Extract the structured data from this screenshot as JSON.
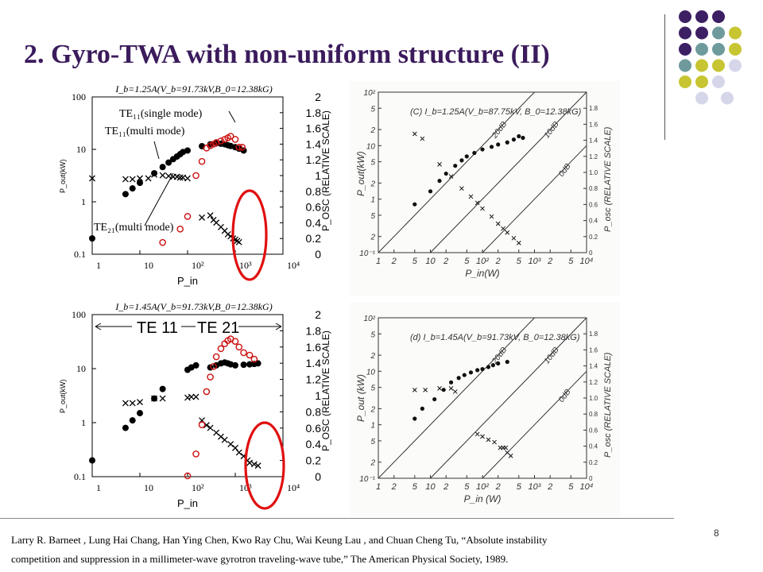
{
  "title": "2. Gyro-TWA with non-uniform structure (II)",
  "page_number": "8",
  "citation": {
    "line1": "Larry R. Barneet , Lung Hai Chang, Han Ying Chen, Kwo Ray Chu, Wai Keung Lau , and Chuan Cheng Tu, “Absolute instability",
    "line2": "competition and suppression in a millimeter-wave  gyrotron traveling-wave tube,” The American Physical Society, 1989."
  },
  "colors": {
    "title": "#3b1b5c",
    "dot_purple": "#3d1f63",
    "dot_teal": "#6e9a9c",
    "dot_yellow": "#c7c531",
    "dot_lavender": "#d6d6ea",
    "highlight": "#e01010",
    "osc_markers": "#cc1010"
  },
  "chart_data": [
    {
      "type": "scatter",
      "panel": "top-left",
      "title": "I_b=1.25A(V_b=91.73kV,B_0=12.38kG)",
      "xlabel": "P_in",
      "ylabel_left": "P_out(kW)",
      "ylabel_right": "P_OSC (RELATIVE SCALE)",
      "x_ticks": [
        "1",
        "10",
        "10²",
        "10³",
        "10⁴"
      ],
      "y_left_ticks": [
        "0.1",
        "1",
        "10",
        "100"
      ],
      "y_right_ticks": [
        "0",
        "0.2",
        "0.4",
        "0.6",
        "0.8",
        "1",
        "1.2",
        "1.4",
        "1.6",
        "1.8",
        "2"
      ],
      "x_scale": "log",
      "xlim": [
        1,
        10000
      ],
      "y_scale": "log",
      "ylim": [
        0.1,
        100
      ],
      "y_right_lim": [
        0,
        2
      ],
      "annotations": [
        "TE₁₁(single mode)",
        "TE₁₁(multi mode)",
        "TE₂₁(multi mode)"
      ],
      "series": [
        {
          "name": "TE11 single mode",
          "marker": "filled-circle",
          "color": "#000000",
          "x": [
            1,
            5,
            7,
            10,
            20,
            30,
            40,
            50,
            60,
            70,
            80,
            100,
            200,
            300,
            400,
            500,
            600,
            700,
            800,
            1000,
            1200,
            1500
          ],
          "y": [
            0.2,
            1.4,
            1.8,
            2.3,
            3.5,
            4.6,
            5.6,
            6.5,
            7.3,
            8.1,
            8.9,
            9.5,
            11.5,
            12.5,
            13,
            12.8,
            12.5,
            12,
            11.6,
            11,
            10.3,
            9.5
          ]
        },
        {
          "name": "TE11 multi mode",
          "marker": "x",
          "color": "#000000",
          "x": [
            1,
            5,
            7,
            10,
            15,
            20,
            30,
            40,
            50,
            60,
            70,
            80,
            100
          ],
          "y": [
            2.8,
            2.7,
            2.7,
            2.8,
            2.8,
            3.3,
            3.2,
            3.1,
            3.0,
            3.0,
            2.9,
            2.9,
            2.8
          ]
        },
        {
          "name": "TE21 multi mode",
          "marker": "x",
          "color": "#000000",
          "x": [
            200,
            300,
            350,
            400,
            500,
            600,
            700,
            800,
            900,
            1000,
            1100,
            1200
          ],
          "y": [
            0.5,
            0.55,
            0.45,
            0.4,
            0.33,
            0.28,
            0.24,
            0.22,
            0.2,
            0.19,
            0.18,
            0.17
          ]
        },
        {
          "name": "P_osc",
          "marker": "open-circle",
          "color": "#cc1010",
          "axis": "right",
          "x": [
            30,
            70,
            100,
            150,
            200,
            250,
            300,
            350,
            400,
            500,
            600,
            700,
            800,
            1000,
            1200,
            1400
          ],
          "y": [
            0.15,
            0.32,
            0.48,
            1.0,
            1.18,
            1.35,
            1.38,
            1.4,
            1.42,
            1.44,
            1.46,
            1.48,
            1.5,
            1.46,
            1.36,
            1.36
          ]
        }
      ]
    },
    {
      "type": "scatter",
      "panel": "bottom-left",
      "title": "I_b=1.45A(V_b=91.73kV,B_0=12.38kG)",
      "xlabel": "P_in",
      "ylabel_left": "P_out(kW)",
      "ylabel_right": "P_OSC (RELATIVE SCALE)",
      "x_ticks": [
        "1",
        "10",
        "10²",
        "10³",
        "10⁴"
      ],
      "y_left_ticks": [
        "0.1",
        "1",
        "10",
        "100"
      ],
      "y_right_ticks": [
        "0",
        "0.2",
        "0.4",
        "0.6",
        "0.8",
        "1",
        "1.2",
        "1.4",
        "1.6",
        "1.8",
        "2"
      ],
      "x_scale": "log",
      "xlim": [
        1,
        10000
      ],
      "y_scale": "log",
      "ylim": [
        0.1,
        100
      ],
      "y_right_lim": [
        0,
        2
      ],
      "annotations": [
        "TE 11",
        "TE 21"
      ],
      "series": [
        {
          "name": "TE11",
          "marker": "filled-circle",
          "color": "#000000",
          "x": [
            1,
            5,
            7,
            10,
            20,
            30,
            100,
            120,
            150,
            300,
            400,
            500,
            600,
            700,
            800,
            1000,
            1500,
            2000,
            2500,
            3000
          ],
          "y": [
            0.2,
            0.8,
            1.1,
            1.5,
            2.8,
            4.2,
            9.5,
            10.5,
            11.5,
            10.5,
            11.5,
            12.5,
            13,
            12.5,
            12,
            11.5,
            11.8,
            12,
            12.2,
            12.5
          ]
        },
        {
          "name": "TE11 x",
          "marker": "x",
          "color": "#000000",
          "x": [
            5,
            7,
            10,
            20,
            30,
            100,
            120,
            150
          ],
          "y": [
            2.3,
            2.3,
            2.4,
            2.8,
            2.8,
            2.9,
            3.0,
            3.0
          ]
        },
        {
          "name": "TE21",
          "marker": "x",
          "color": "#000000",
          "x": [
            200,
            250,
            300,
            400,
            500,
            600,
            800,
            1000,
            1200,
            1500,
            1800,
            2000,
            2500,
            3000
          ],
          "y": [
            1.1,
            0.9,
            0.8,
            0.65,
            0.55,
            0.48,
            0.4,
            0.34,
            0.28,
            0.24,
            0.2,
            0.18,
            0.17,
            0.16
          ]
        },
        {
          "name": "P_osc",
          "marker": "open-circle",
          "color": "#cc1010",
          "axis": "right",
          "x": [
            100,
            150,
            200,
            250,
            300,
            350,
            400,
            500,
            600,
            700,
            800,
            1000,
            1200,
            1500,
            2000,
            2500
          ],
          "y": [
            0.01,
            0.28,
            0.64,
            1.05,
            1.23,
            1.36,
            1.48,
            1.58,
            1.64,
            1.68,
            1.7,
            1.67,
            1.6,
            1.53,
            1.5,
            1.45
          ]
        }
      ]
    },
    {
      "type": "scatter",
      "panel": "top-right",
      "title": "(C) I_b=1.25A(V_b=87.75kV, B_0=12.38kG)",
      "xlabel": "P_in(W)",
      "ylabel_left": "P_out(kW)",
      "ylabel_right": "P_osc (RELATIVE SCALE)",
      "x_ticks": [
        "1",
        "2",
        "5",
        "10",
        "2",
        "5",
        "10²",
        "2",
        "5",
        "10³",
        "2",
        "5",
        "10⁴"
      ],
      "y_left_ticks": [
        "10⁻¹",
        "2",
        "5",
        "1",
        "2",
        "5",
        "10",
        "2",
        "5",
        "10²"
      ],
      "y_right_ticks": [
        "0",
        "0.2",
        "0.4",
        "0.6",
        "0.8",
        "1.0",
        "1.2",
        "1.4",
        "1.6",
        "1.8"
      ],
      "line_labels": [
        "20dB",
        "10dB",
        "0dB"
      ],
      "x_scale": "log",
      "xlim": [
        1,
        10000
      ],
      "y_scale": "log",
      "ylim": [
        0.1,
        100
      ],
      "series": [
        {
          "name": "P_out",
          "marker": "filled-circle",
          "x": [
            5,
            10,
            15,
            20,
            30,
            40,
            50,
            70,
            100,
            150,
            200,
            300,
            400,
            500,
            600
          ],
          "y": [
            0.8,
            1.4,
            2.2,
            3,
            4.2,
            5.3,
            6.3,
            7.3,
            8.5,
            9.5,
            10.5,
            11.5,
            13,
            15,
            14
          ]
        },
        {
          "name": "P_osc",
          "marker": "x",
          "x": [
            5,
            7,
            15,
            25,
            40,
            60,
            80,
            100,
            150,
            200,
            250,
            300,
            400,
            500
          ],
          "y": [
            1.48,
            1.42,
            1.1,
            0.95,
            0.8,
            0.7,
            0.62,
            0.55,
            0.45,
            0.36,
            0.3,
            0.25,
            0.18,
            0.12
          ]
        }
      ]
    },
    {
      "type": "scatter",
      "panel": "bottom-right",
      "title": "(d) I_b=1.45A(V_b=91.73kV, B_0=12.38kG)",
      "xlabel": "P_in (W)",
      "ylabel_left": "P_out (kW)",
      "ylabel_right": "P_osc (RELATIVE SCALE)",
      "x_ticks": [
        "1",
        "2",
        "5",
        "10",
        "2",
        "5",
        "10²",
        "2",
        "5",
        "10³",
        "2",
        "5",
        "10⁴"
      ],
      "y_left_ticks": [
        "10⁻¹",
        "2",
        "5",
        "1",
        "2",
        "5",
        "10",
        "2",
        "5",
        "10²"
      ],
      "y_right_ticks": [
        "0",
        "0.2",
        "0.4",
        "0.6",
        "0.8",
        "1.0",
        "1.2",
        "1.4",
        "1.6",
        "1.8"
      ],
      "line_labels": [
        "20dB",
        "10dB",
        "0dB"
      ],
      "x_scale": "log",
      "xlim": [
        1,
        10000
      ],
      "y_scale": "log",
      "ylim": [
        0.1,
        100
      ],
      "series": [
        {
          "name": "P_out",
          "marker": "filled-circle",
          "x": [
            5,
            7,
            12,
            18,
            25,
            35,
            45,
            60,
            80,
            100,
            130,
            160,
            200,
            300
          ],
          "y": [
            1.3,
            2.0,
            3.0,
            4.5,
            6.2,
            7.5,
            8.5,
            9.5,
            10.5,
            11,
            12,
            13,
            14,
            15
          ]
        },
        {
          "name": "P_osc",
          "marker": "x",
          "x": [
            5,
            8,
            15,
            25,
            30,
            80,
            100,
            130,
            170,
            220,
            250,
            280,
            300,
            350
          ],
          "y": [
            1.1,
            1.1,
            1.12,
            1.12,
            1.08,
            0.55,
            0.52,
            0.48,
            0.45,
            0.38,
            0.38,
            0.38,
            0.32,
            0.28
          ]
        }
      ]
    }
  ]
}
